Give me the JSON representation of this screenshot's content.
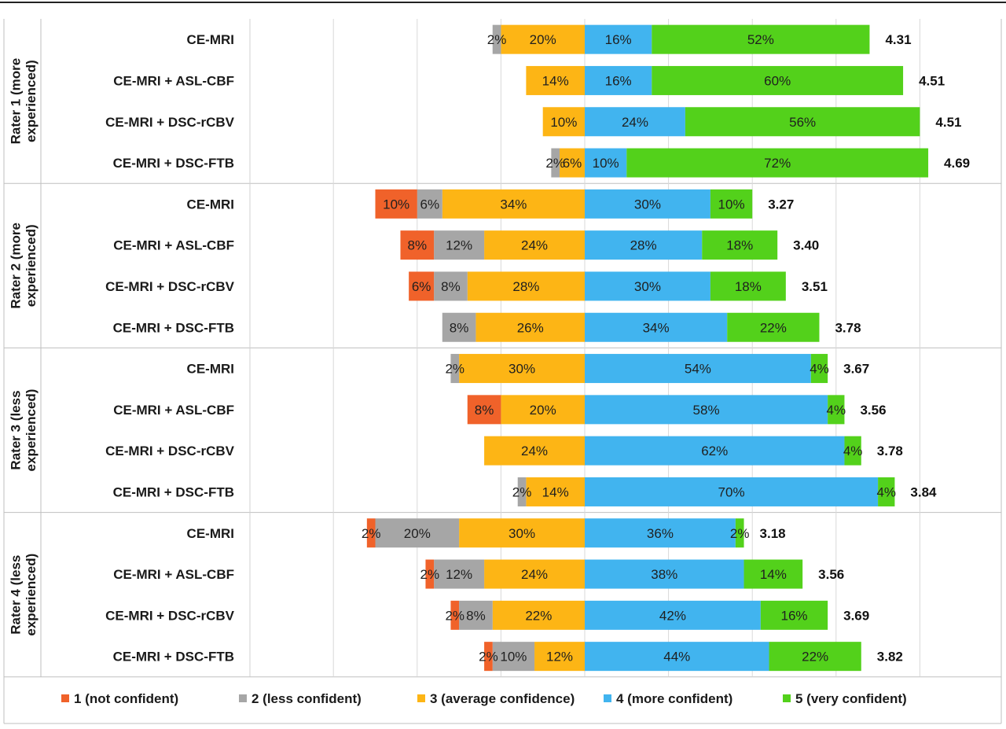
{
  "colors": {
    "level_1": "#f0622a",
    "level_2": "#a6a6a6",
    "level_3": "#fdb515",
    "level_4": "#41b4ef",
    "level_5": "#53d11b"
  },
  "chart_data": {
    "type": "bar",
    "subtype": "diverging-stacked-horizontal",
    "xlim": [
      -60,
      100
    ],
    "grid": true,
    "legend_position": "bottom",
    "legend": [
      "1 (not confident)",
      "2 (less confident)",
      "3 (average confidence)",
      "4 (more confident)",
      "5 (very confident)"
    ],
    "groups": [
      {
        "label": "Rater 1 (more experienced)",
        "label_lines": [
          "Rater 1 (more",
          "experienced)"
        ],
        "rows": [
          {
            "category": "CE-MRI",
            "values": [
              0,
              2,
              20,
              16,
              52
            ],
            "labels": [
              "",
              "2%",
              "20%",
              "16%",
              "52%"
            ],
            "mean": "4.31"
          },
          {
            "category": "CE-MRI + ASL-CBF",
            "values": [
              0,
              0,
              14,
              16,
              60
            ],
            "labels": [
              "",
              "",
              "14%",
              "16%",
              "60%"
            ],
            "mean": "4.51"
          },
          {
            "category": "CE-MRI + DSC-rCBV",
            "values": [
              0,
              0,
              10,
              24,
              56
            ],
            "labels": [
              "",
              "",
              "10%",
              "24%",
              "56%"
            ],
            "mean": "4.51"
          },
          {
            "category": "CE-MRI + DSC-FTB",
            "values": [
              0,
              2,
              6,
              10,
              72
            ],
            "labels": [
              "",
              "2%",
              "6%",
              "10%",
              "72%"
            ],
            "mean": "4.69"
          }
        ]
      },
      {
        "label": "Rater 2 (more experienced)",
        "label_lines": [
          "Rater 2 (more",
          "experienced)"
        ],
        "rows": [
          {
            "category": "CE-MRI",
            "values": [
              10,
              6,
              34,
              30,
              10
            ],
            "labels": [
              "10%",
              "6%",
              "34%",
              "30%",
              "10%"
            ],
            "mean": "3.27"
          },
          {
            "category": "CE-MRI + ASL-CBF",
            "values": [
              8,
              12,
              24,
              28,
              18
            ],
            "labels": [
              "8%",
              "12%",
              "24%",
              "28%",
              "18%"
            ],
            "mean": "3.40"
          },
          {
            "category": "CE-MRI + DSC-rCBV",
            "values": [
              6,
              8,
              28,
              30,
              18
            ],
            "labels": [
              "6%",
              "8%",
              "28%",
              "30%",
              "18%"
            ],
            "mean": "3.51"
          },
          {
            "category": "CE-MRI + DSC-FTB",
            "values": [
              0,
              8,
              26,
              34,
              22
            ],
            "labels": [
              "",
              "8%",
              "26%",
              "34%",
              "22%"
            ],
            "mean": "3.78"
          }
        ]
      },
      {
        "label": "Rater 3 (less experienced)",
        "label_lines": [
          "Rater 3 (less",
          "experienced)"
        ],
        "rows": [
          {
            "category": "CE-MRI",
            "values": [
              0,
              2,
              30,
              54,
              4
            ],
            "labels": [
              "",
              "2%",
              "30%",
              "54%",
              "4%"
            ],
            "mean": "3.67"
          },
          {
            "category": "CE-MRI + ASL-CBF",
            "values": [
              8,
              0,
              20,
              58,
              4
            ],
            "labels": [
              "8%",
              "",
              "20%",
              "58%",
              "4%"
            ],
            "mean": "3.56"
          },
          {
            "category": "CE-MRI + DSC-rCBV",
            "values": [
              0,
              0,
              24,
              62,
              4
            ],
            "labels": [
              "",
              "",
              "24%",
              "62%",
              "4%"
            ],
            "mean": "3.78"
          },
          {
            "category": "CE-MRI + DSC-FTB",
            "values": [
              0,
              2,
              14,
              70,
              4
            ],
            "labels": [
              "",
              "2%",
              "14%",
              "70%",
              "4%"
            ],
            "mean": "3.84"
          }
        ]
      },
      {
        "label": "Rater 4 (less experienced)",
        "label_lines": [
          "Rater 4 (less",
          "experienced)"
        ],
        "rows": [
          {
            "category": "CE-MRI",
            "values": [
              2,
              20,
              30,
              36,
              2
            ],
            "labels": [
              "2%",
              "20%",
              "30%",
              "36%",
              "2%"
            ],
            "mean": "3.18"
          },
          {
            "category": "CE-MRI + ASL-CBF",
            "values": [
              2,
              12,
              24,
              38,
              14
            ],
            "labels": [
              "2%",
              "12%",
              "24%",
              "38%",
              "14%"
            ],
            "mean": "3.56"
          },
          {
            "category": "CE-MRI + DSC-rCBV",
            "values": [
              2,
              8,
              22,
              42,
              16
            ],
            "labels": [
              "2%",
              "8%",
              "22%",
              "42%",
              "16%"
            ],
            "mean": "3.69"
          },
          {
            "category": "CE-MRI + DSC-FTB",
            "values": [
              2,
              10,
              12,
              44,
              22
            ],
            "labels": [
              "2%",
              "10%",
              "12%",
              "44%",
              "22%"
            ],
            "mean": "3.82"
          }
        ]
      }
    ]
  }
}
